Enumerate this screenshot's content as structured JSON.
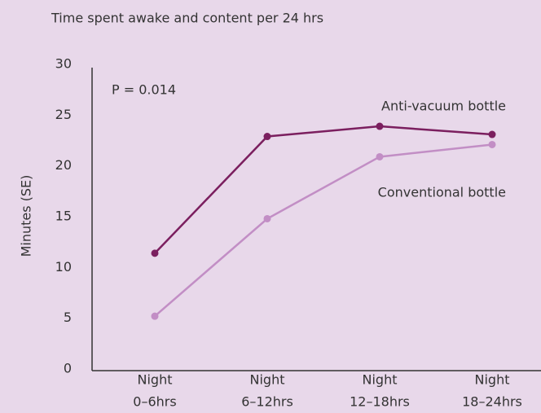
{
  "chart_data": {
    "type": "line",
    "title": "Time spent awake and content per 24 hrs",
    "ylabel": "Minutes (SE)",
    "annotation": "P = 0.014",
    "categories": [
      [
        "Night",
        "0–6hrs"
      ],
      [
        "Night",
        "6–12hrs"
      ],
      [
        "Night",
        "12–18hrs"
      ],
      [
        "Night",
        "18–24hrs"
      ]
    ],
    "series": [
      {
        "name": "Anti-vacuum bottle",
        "color": "#7b1f5f",
        "values": [
          11.4,
          22.9,
          23.9,
          23.1
        ]
      },
      {
        "name": "Conventional bottle",
        "color": "#c28ec5",
        "values": [
          5.2,
          14.8,
          20.9,
          22.1
        ]
      }
    ],
    "ylim": [
      0,
      30
    ],
    "yticks": [
      0,
      5,
      10,
      15,
      20,
      25,
      30
    ],
    "grid": false
  }
}
